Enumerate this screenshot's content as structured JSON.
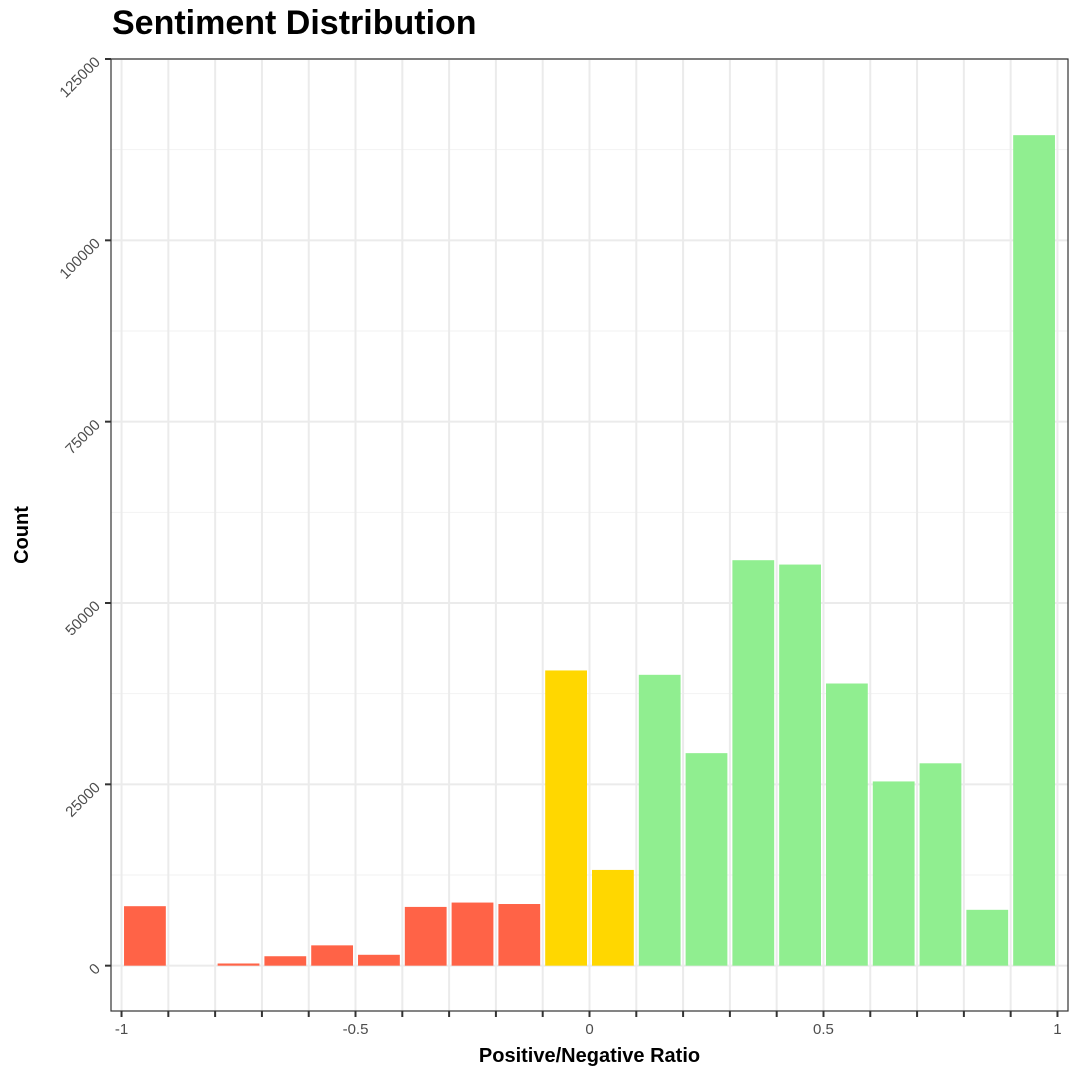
{
  "chart_data": {
    "type": "bar",
    "title": "Sentiment Distribution",
    "xlabel": "Positive/Negative Ratio",
    "ylabel": "Count",
    "xlim": [
      -1.0,
      1.0
    ],
    "ylim": [
      0,
      125000
    ],
    "x_ticks": [
      {
        "value": -1,
        "label": "-1"
      },
      {
        "value": -0.5,
        "label": "-0.5"
      },
      {
        "value": 0,
        "label": "0"
      },
      {
        "value": 0.5,
        "label": "0.5"
      },
      {
        "value": 1,
        "label": "1"
      }
    ],
    "y_ticks": [
      {
        "value": 0,
        "label": "0"
      },
      {
        "value": 25000,
        "label": "25000"
      },
      {
        "value": 50000,
        "label": "50000"
      },
      {
        "value": 75000,
        "label": "75000"
      },
      {
        "value": 100000,
        "label": "100000"
      },
      {
        "value": 125000,
        "label": "125000"
      }
    ],
    "grid": true,
    "bin_width": 0.1,
    "colors": {
      "negative": "#FF6347",
      "neutral": "#FFD700",
      "positive": "#90EE90"
    },
    "bars": [
      {
        "x": -0.95,
        "count": 8200,
        "sentiment": "negative"
      },
      {
        "x": -0.75,
        "count": 300,
        "sentiment": "negative"
      },
      {
        "x": -0.65,
        "count": 1300,
        "sentiment": "negative"
      },
      {
        "x": -0.55,
        "count": 2800,
        "sentiment": "negative"
      },
      {
        "x": -0.45,
        "count": 1500,
        "sentiment": "negative"
      },
      {
        "x": -0.35,
        "count": 8100,
        "sentiment": "negative"
      },
      {
        "x": -0.25,
        "count": 8700,
        "sentiment": "negative"
      },
      {
        "x": -0.15,
        "count": 8500,
        "sentiment": "negative"
      },
      {
        "x": -0.05,
        "count": 40700,
        "sentiment": "neutral"
      },
      {
        "x": 0.05,
        "count": 13200,
        "sentiment": "neutral"
      },
      {
        "x": 0.15,
        "count": 40100,
        "sentiment": "positive"
      },
      {
        "x": 0.25,
        "count": 29300,
        "sentiment": "positive"
      },
      {
        "x": 0.35,
        "count": 55900,
        "sentiment": "positive"
      },
      {
        "x": 0.45,
        "count": 55300,
        "sentiment": "positive"
      },
      {
        "x": 0.55,
        "count": 38900,
        "sentiment": "positive"
      },
      {
        "x": 0.65,
        "count": 25400,
        "sentiment": "positive"
      },
      {
        "x": 0.75,
        "count": 27900,
        "sentiment": "positive"
      },
      {
        "x": 0.85,
        "count": 7700,
        "sentiment": "positive"
      },
      {
        "x": 0.95,
        "count": 114500,
        "sentiment": "positive"
      }
    ]
  }
}
